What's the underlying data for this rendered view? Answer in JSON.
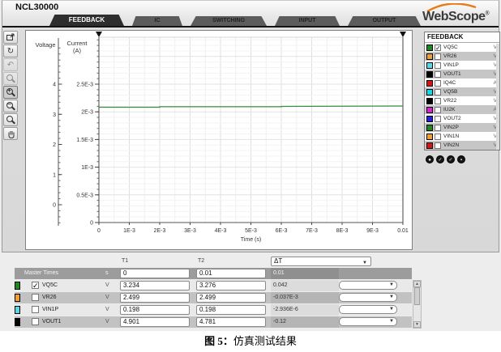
{
  "window": {
    "title": "NCL30000",
    "logo_text": "WebScope",
    "logo_reg": "®"
  },
  "tabs": [
    {
      "label": "FEEDBACK",
      "active": true
    },
    {
      "label": "IC",
      "active": false
    },
    {
      "label": "SWITCHING",
      "active": false
    },
    {
      "label": "INPUT",
      "active": false
    },
    {
      "label": "OUTPUT",
      "active": false
    }
  ],
  "toolbar": {
    "buttons": [
      {
        "name": "export-plot"
      },
      {
        "name": "refresh-plot"
      },
      {
        "name": "undo-zoom"
      },
      {
        "name": "zoom-previous"
      },
      {
        "name": "zoom-in"
      },
      {
        "name": "zoom-out"
      },
      {
        "name": "zoom-full"
      },
      {
        "name": "pan"
      }
    ]
  },
  "chart_data": {
    "type": "line",
    "title": "",
    "x_label": "Time (s)",
    "x_ticks": [
      "0",
      "1E-3",
      "2E-3",
      "3E-3",
      "4E-3",
      "5E-3",
      "6E-3",
      "7E-3",
      "8E-3",
      "9E-3",
      "0.01"
    ],
    "x_range": [
      0,
      0.01
    ],
    "voltage_axis": {
      "label": "Voltage",
      "tick_labels": [
        "0",
        "1",
        "2",
        "3",
        "4"
      ],
      "tick_values": [
        0,
        1,
        2,
        3,
        4
      ]
    },
    "current_axis": {
      "label_line1": "Current",
      "label_line2": "(A)",
      "tick_labels": [
        "0",
        "0.5E-3",
        "1E-3",
        "1.5E-3",
        "2E-3",
        "2.5E-3"
      ],
      "tick_values_mA": [
        0,
        0.5,
        1,
        1.5,
        2,
        2.5
      ]
    },
    "cursors": {
      "t1": 0,
      "t2": 0.01
    },
    "grid": true,
    "series": [
      {
        "name": "VQ5C",
        "color": "#3a8c3a",
        "axis": "voltage",
        "points": [
          [
            0,
            3.234
          ],
          [
            0.002,
            3.236
          ],
          [
            0.002,
            3.25
          ],
          [
            0.006,
            3.25
          ],
          [
            0.006,
            3.262
          ],
          [
            0.01,
            3.276
          ]
        ]
      }
    ]
  },
  "signal_panel": {
    "title": "FEEDBACK",
    "signals": [
      {
        "name": "VQ5C",
        "color": "#1e8a1e",
        "unit": "V",
        "checked": true
      },
      {
        "name": "VR26",
        "color": "#f0a030",
        "unit": "V",
        "checked": false
      },
      {
        "name": "VIN1P",
        "color": "#55d8e8",
        "unit": "V",
        "checked": false
      },
      {
        "name": "VOUT1",
        "color": "#000000",
        "unit": "V",
        "checked": false
      },
      {
        "name": "IQ4C",
        "color": "#dd1111",
        "unit": "A",
        "checked": false
      },
      {
        "name": "VQ5B",
        "color": "#00e0f0",
        "unit": "V",
        "checked": false
      },
      {
        "name": "VR22",
        "color": "#000000",
        "unit": "V",
        "checked": false
      },
      {
        "name": "IU2K",
        "color": "#e020d0",
        "unit": "A",
        "checked": false
      },
      {
        "name": "VOUT2",
        "color": "#2222dd",
        "unit": "V",
        "checked": false
      },
      {
        "name": "VIN2P",
        "color": "#1e8a1e",
        "unit": "V",
        "checked": false
      },
      {
        "name": "VIN1N",
        "color": "#f0a030",
        "unit": "V",
        "checked": false
      },
      {
        "name": "VIN2N",
        "color": "#dd1111",
        "unit": "V",
        "checked": false
      }
    ],
    "footer_buttons": [
      {
        "name": "marker-button-1",
        "glyph": "●"
      },
      {
        "name": "marker-button-2",
        "glyph": "✓"
      },
      {
        "name": "marker-button-3",
        "glyph": "✓"
      },
      {
        "name": "marker-button-4",
        "glyph": "▪"
      }
    ]
  },
  "table": {
    "col_t1": "T1",
    "col_t2": "T2",
    "col_dt": "ΔT",
    "master": {
      "label": "Master Times",
      "unit": "s",
      "t1": "0",
      "t2": "0.01",
      "dt": "0.01"
    },
    "rows": [
      {
        "name": "VQ5C",
        "color": "#1e8a1e",
        "checked": true,
        "unit": "V",
        "t1": "3.234",
        "t2": "3.276",
        "dt": "0.042"
      },
      {
        "name": "VR26",
        "color": "#f0a030",
        "checked": false,
        "unit": "V",
        "t1": "2.499",
        "t2": "2.499",
        "dt": "-0.037E-3"
      },
      {
        "name": "VIN1P",
        "color": "#55d8e8",
        "checked": false,
        "unit": "V",
        "t1": "0.198",
        "t2": "0.198",
        "dt": "-2.936E-6"
      },
      {
        "name": "VOUT1",
        "color": "#000000",
        "checked": false,
        "unit": "V",
        "t1": "4.901",
        "t2": "4.781",
        "dt": "-0.12"
      }
    ]
  },
  "caption": {
    "prefix": "图 5：",
    "text": "仿真测试结果"
  }
}
